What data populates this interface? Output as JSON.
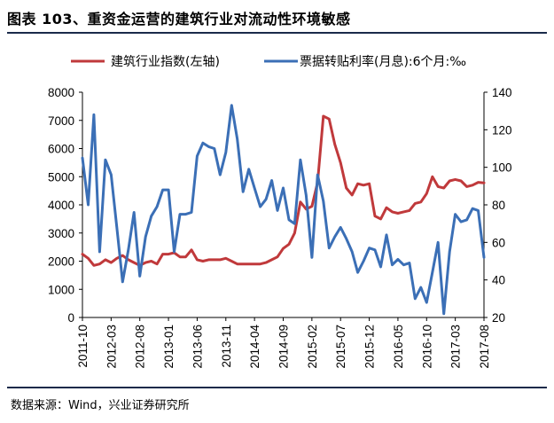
{
  "header": {
    "title": "图表 103、重资金运营的建筑行业对流动性环境敏感"
  },
  "footer": {
    "source": "数据来源：Wind，兴业证券研究所"
  },
  "chart_data": {
    "type": "line",
    "legend_position": "top",
    "grid": false,
    "y_left": {
      "range": [
        0,
        8000
      ],
      "ticks": [
        0,
        1000,
        2000,
        3000,
        4000,
        5000,
        6000,
        7000,
        8000
      ]
    },
    "y_right": {
      "range": [
        20,
        140
      ],
      "ticks": [
        20,
        40,
        60,
        80,
        100,
        120,
        140
      ]
    },
    "x_ticks": [
      "2011-10",
      "2012-03",
      "2012-08",
      "2013-01",
      "2013-06",
      "2013-11",
      "2014-04",
      "2014-09",
      "2015-02",
      "2015-07",
      "2015-12",
      "2016-05",
      "2016-10",
      "2017-03",
      "2017-08"
    ],
    "series": [
      {
        "name": "建筑行业指数(左轴)",
        "axis": "left",
        "color": "#c0393b",
        "points": [
          [
            "2011-10",
            2250
          ],
          [
            "2011-11",
            2100
          ],
          [
            "2011-12",
            1850
          ],
          [
            "2012-01",
            1900
          ],
          [
            "2012-02",
            2050
          ],
          [
            "2012-03",
            1950
          ],
          [
            "2012-04",
            2100
          ],
          [
            "2012-05",
            2200
          ],
          [
            "2012-06",
            2050
          ],
          [
            "2012-07",
            1950
          ],
          [
            "2012-08",
            1850
          ],
          [
            "2012-09",
            1950
          ],
          [
            "2012-10",
            2000
          ],
          [
            "2012-11",
            1900
          ],
          [
            "2012-12",
            2250
          ],
          [
            "2013-01",
            2250
          ],
          [
            "2013-02",
            2300
          ],
          [
            "2013-03",
            2150
          ],
          [
            "2013-04",
            2150
          ],
          [
            "2013-05",
            2400
          ],
          [
            "2013-06",
            2050
          ],
          [
            "2013-07",
            2000
          ],
          [
            "2013-08",
            2050
          ],
          [
            "2013-09",
            2050
          ],
          [
            "2013-10",
            2050
          ],
          [
            "2013-11",
            2100
          ],
          [
            "2013-12",
            2000
          ],
          [
            "2014-01",
            1900
          ],
          [
            "2014-02",
            1900
          ],
          [
            "2014-03",
            1900
          ],
          [
            "2014-04",
            1900
          ],
          [
            "2014-05",
            1900
          ],
          [
            "2014-06",
            1950
          ],
          [
            "2014-07",
            2050
          ],
          [
            "2014-08",
            2150
          ],
          [
            "2014-09",
            2450
          ],
          [
            "2014-10",
            2600
          ],
          [
            "2014-11",
            3000
          ],
          [
            "2014-12",
            4100
          ],
          [
            "2015-01",
            3850
          ],
          [
            "2015-02",
            3950
          ],
          [
            "2015-03",
            4800
          ],
          [
            "2015-04",
            7150
          ],
          [
            "2015-05",
            7050
          ],
          [
            "2015-06",
            6150
          ],
          [
            "2015-07",
            5500
          ],
          [
            "2015-08",
            4600
          ],
          [
            "2015-09",
            4350
          ],
          [
            "2015-10",
            4750
          ],
          [
            "2015-11",
            4700
          ],
          [
            "2015-12",
            4750
          ],
          [
            "2016-01",
            3600
          ],
          [
            "2016-02",
            3500
          ],
          [
            "2016-03",
            3900
          ],
          [
            "2016-04",
            3750
          ],
          [
            "2016-05",
            3700
          ],
          [
            "2016-06",
            3750
          ],
          [
            "2016-07",
            3800
          ],
          [
            "2016-08",
            4050
          ],
          [
            "2016-09",
            4100
          ],
          [
            "2016-10",
            4400
          ],
          [
            "2016-11",
            5000
          ],
          [
            "2016-12",
            4650
          ],
          [
            "2017-01",
            4600
          ],
          [
            "2017-02",
            4850
          ],
          [
            "2017-03",
            4900
          ],
          [
            "2017-04",
            4850
          ],
          [
            "2017-05",
            4650
          ],
          [
            "2017-06",
            4700
          ],
          [
            "2017-07",
            4800
          ],
          [
            "2017-08",
            4780
          ]
        ]
      },
      {
        "name": "票据转贴利率(月息):6个月:‰",
        "axis": "right",
        "color": "#3b6fb6",
        "points": [
          [
            "2011-10",
            105
          ],
          [
            "2011-11",
            80
          ],
          [
            "2011-12",
            128
          ],
          [
            "2012-01",
            55
          ],
          [
            "2012-02",
            104
          ],
          [
            "2012-03",
            96
          ],
          [
            "2012-04",
            68
          ],
          [
            "2012-05",
            39
          ],
          [
            "2012-06",
            56
          ],
          [
            "2012-07",
            76
          ],
          [
            "2012-08",
            42
          ],
          [
            "2012-09",
            63
          ],
          [
            "2012-10",
            74
          ],
          [
            "2012-11",
            79
          ],
          [
            "2012-12",
            88
          ],
          [
            "2013-01",
            88
          ],
          [
            "2013-02",
            55
          ],
          [
            "2013-03",
            75
          ],
          [
            "2013-04",
            75
          ],
          [
            "2013-05",
            76
          ],
          [
            "2013-06",
            106
          ],
          [
            "2013-07",
            113
          ],
          [
            "2013-08",
            111
          ],
          [
            "2013-09",
            110
          ],
          [
            "2013-10",
            96
          ],
          [
            "2013-11",
            108
          ],
          [
            "2013-12",
            133
          ],
          [
            "2014-01",
            115
          ],
          [
            "2014-02",
            87
          ],
          [
            "2014-03",
            99
          ],
          [
            "2014-04",
            89
          ],
          [
            "2014-05",
            79
          ],
          [
            "2014-06",
            83
          ],
          [
            "2014-07",
            93
          ],
          [
            "2014-08",
            77
          ],
          [
            "2014-09",
            89
          ],
          [
            "2014-10",
            72
          ],
          [
            "2014-11",
            70
          ],
          [
            "2014-12",
            104
          ],
          [
            "2015-01",
            85
          ],
          [
            "2015-02",
            52
          ],
          [
            "2015-03",
            96
          ],
          [
            "2015-04",
            82
          ],
          [
            "2015-05",
            57
          ],
          [
            "2015-06",
            63
          ],
          [
            "2015-07",
            68
          ],
          [
            "2015-08",
            62
          ],
          [
            "2015-09",
            55
          ],
          [
            "2015-10",
            44
          ],
          [
            "2015-11",
            50
          ],
          [
            "2015-12",
            57
          ],
          [
            "2016-01",
            56
          ],
          [
            "2016-02",
            47
          ],
          [
            "2016-03",
            64
          ],
          [
            "2016-04",
            48
          ],
          [
            "2016-05",
            51
          ],
          [
            "2016-06",
            48
          ],
          [
            "2016-07",
            49
          ],
          [
            "2016-08",
            30
          ],
          [
            "2016-09",
            36
          ],
          [
            "2016-10",
            28
          ],
          [
            "2016-11",
            44
          ],
          [
            "2016-12",
            60
          ],
          [
            "2017-01",
            22
          ],
          [
            "2017-02",
            55
          ],
          [
            "2017-03",
            75
          ],
          [
            "2017-04",
            71
          ],
          [
            "2017-05",
            72
          ],
          [
            "2017-06",
            78
          ],
          [
            "2017-07",
            77
          ],
          [
            "2017-08",
            52
          ]
        ]
      }
    ]
  }
}
